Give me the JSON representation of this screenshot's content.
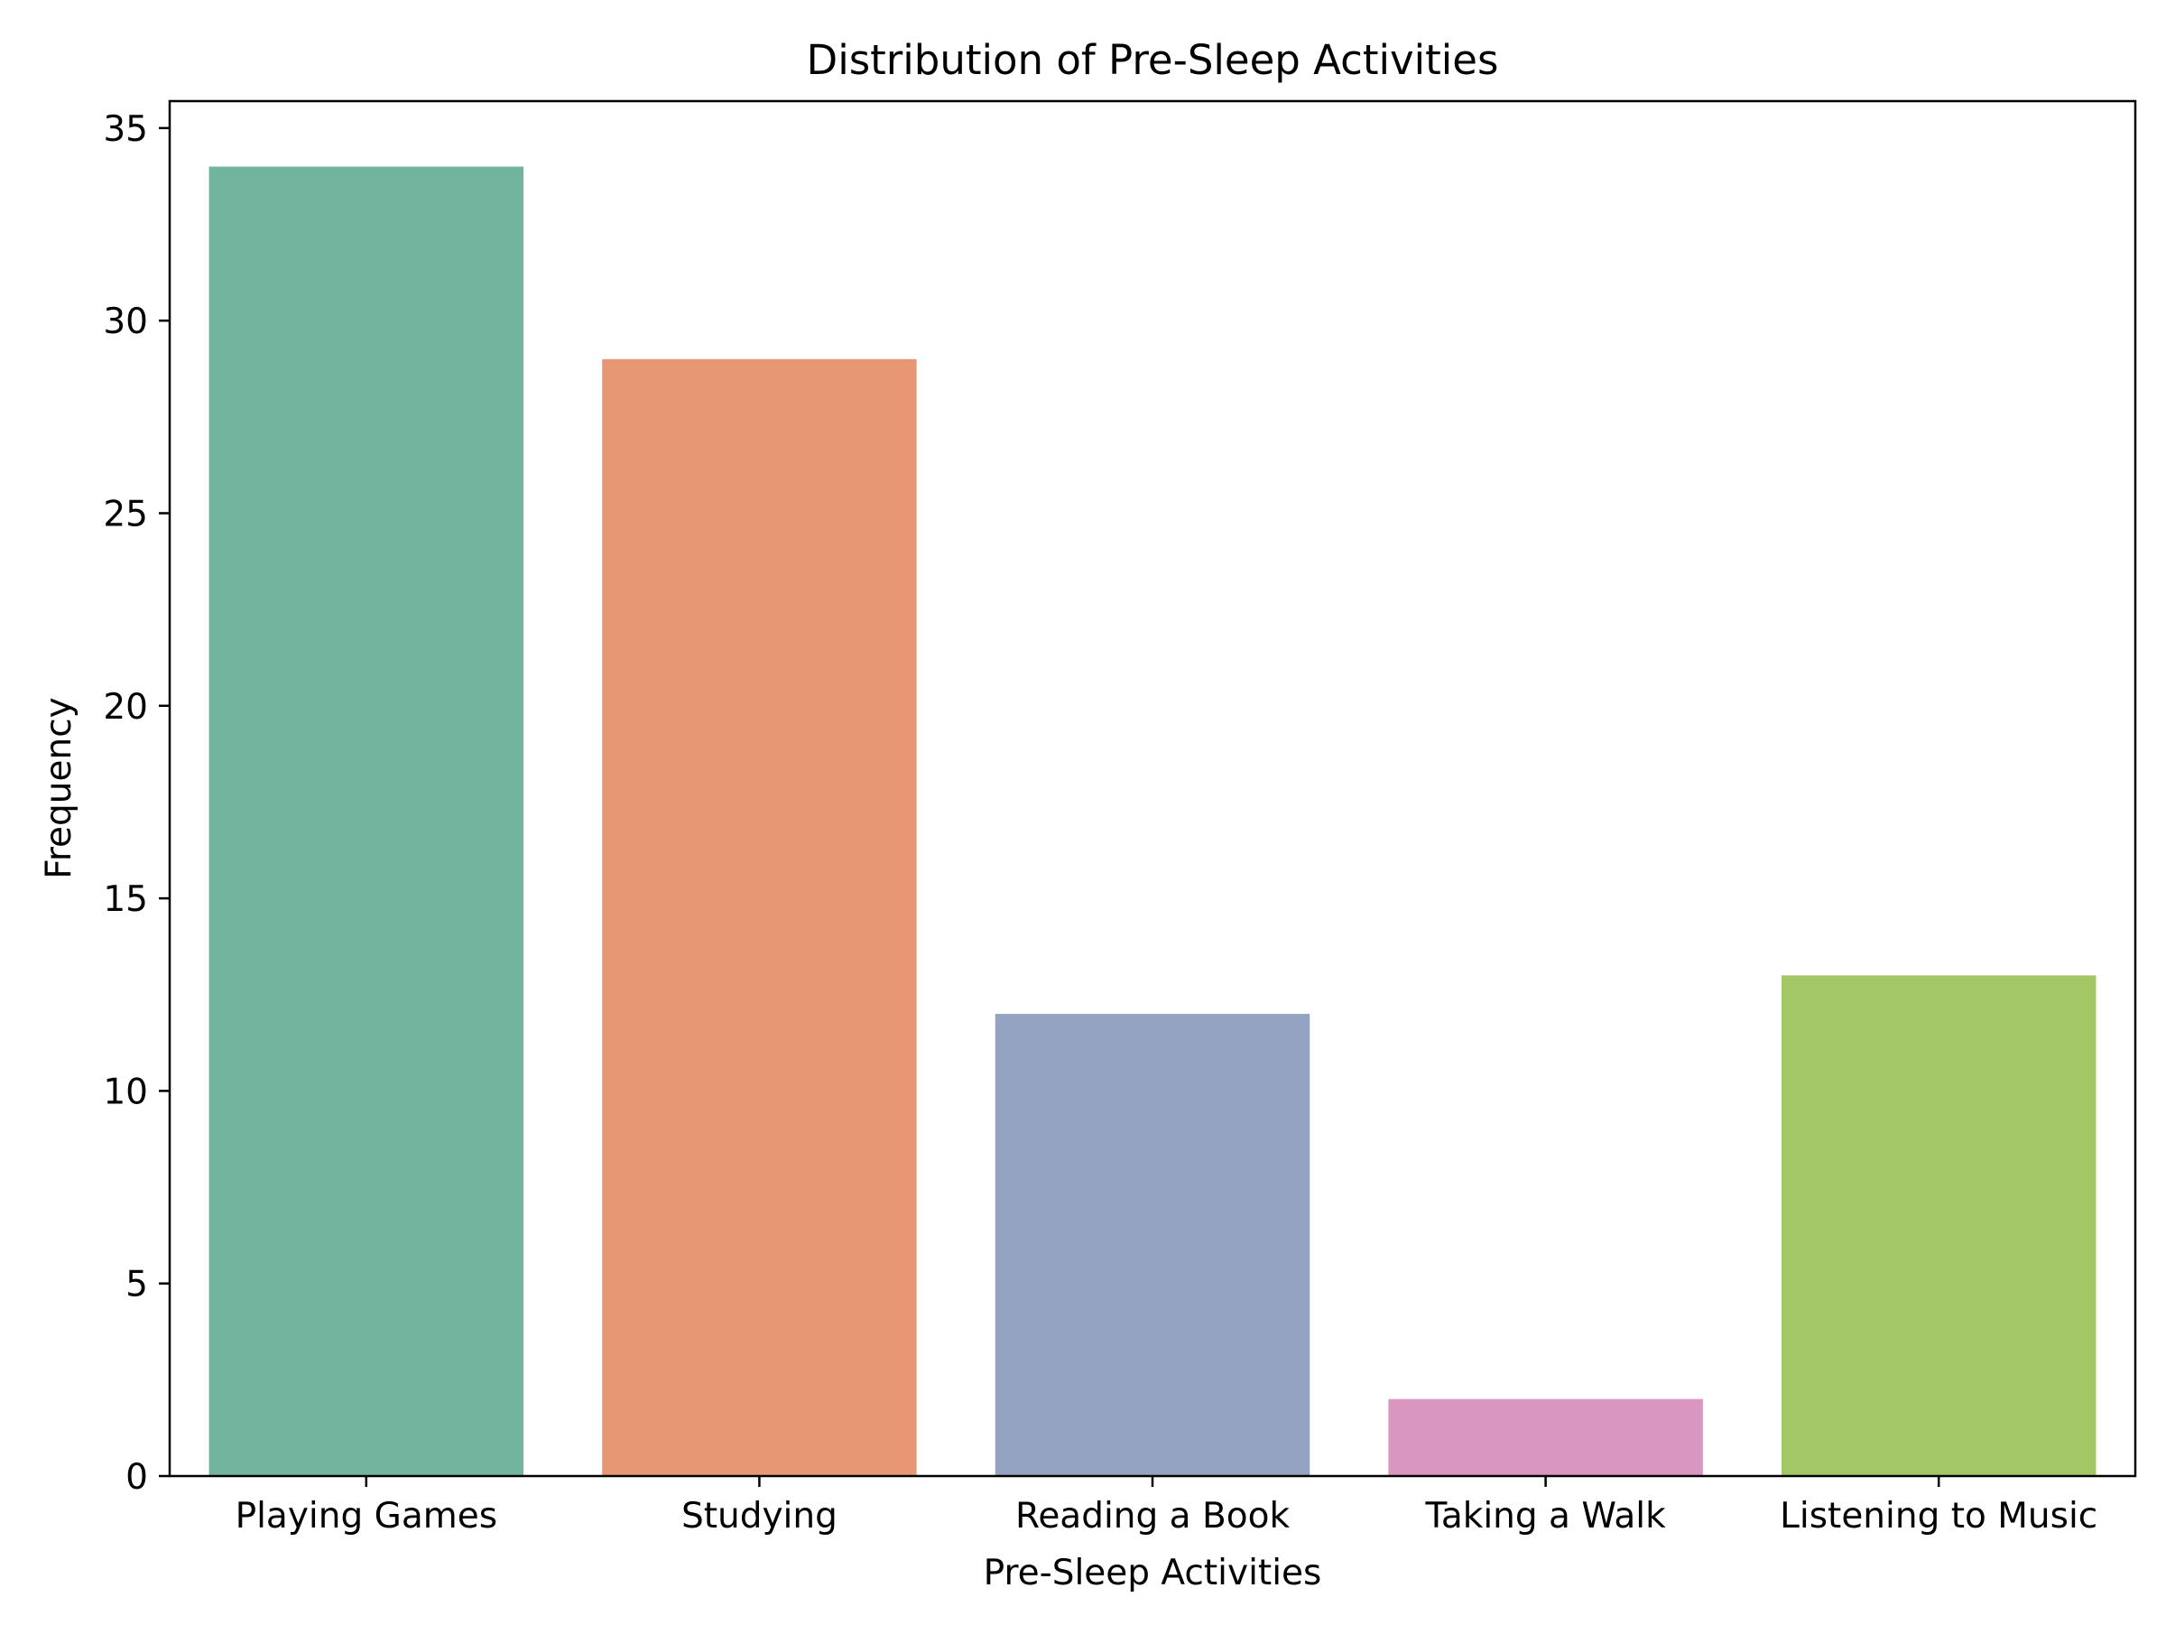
{
  "chart_data": {
    "type": "bar",
    "title": "Distribution of Pre-Sleep Activities",
    "xlabel": "Pre-Sleep Activities",
    "ylabel": "Frequency",
    "categories": [
      "Playing Games",
      "Studying",
      "Reading a Book",
      "Taking a Walk",
      "Listening to Music"
    ],
    "values": [
      34,
      29,
      12,
      2,
      13
    ],
    "colors": [
      "#73b49f",
      "#e89775",
      "#94a3c1",
      "#d996c0",
      "#a3c764"
    ],
    "ylim": [
      0,
      35.7
    ],
    "yticks": [
      0,
      5,
      10,
      15,
      20,
      25,
      30,
      35
    ],
    "grid": false,
    "legend": "none"
  }
}
